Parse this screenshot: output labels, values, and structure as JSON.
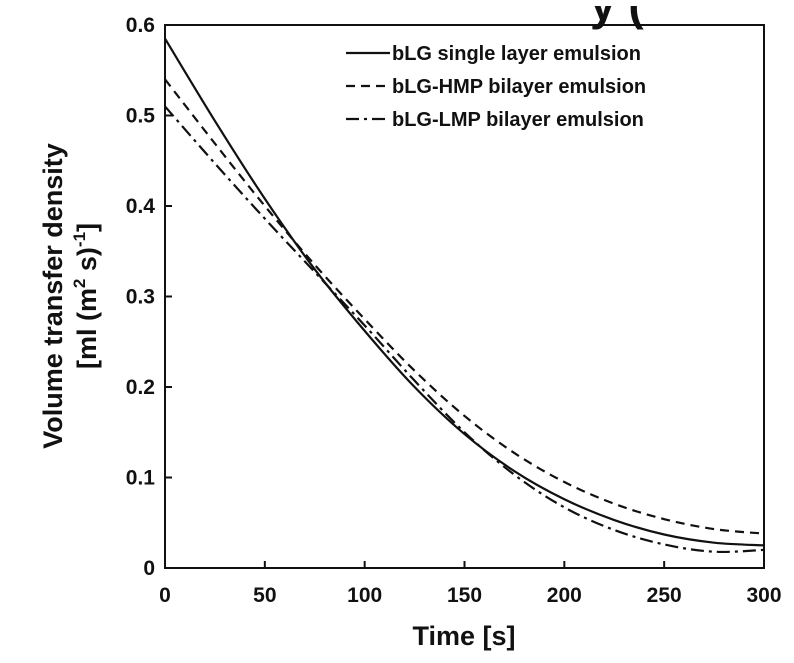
{
  "chart_data": {
    "type": "line",
    "title": "y (",
    "xlabel": "Time [s]",
    "ylabel_line1": "Volume transfer density",
    "ylabel_line2_pre": "[ml (m",
    "ylabel_line2_sup1": "2",
    "ylabel_line2_mid": " s)",
    "ylabel_line2_sup2": "-1",
    "ylabel_line2_post": "]",
    "xlim": [
      0,
      300
    ],
    "ylim": [
      0,
      0.6
    ],
    "xticks": [
      0,
      50,
      100,
      150,
      200,
      250,
      300
    ],
    "xtick_labels": [
      "0",
      "50",
      "100",
      "150",
      "200",
      "250",
      "300"
    ],
    "yticks": [
      0,
      0.1,
      0.2,
      0.3,
      0.4,
      0.5,
      0.6
    ],
    "ytick_labels": [
      "0",
      "0.1",
      "0.2",
      "0.3",
      "0.4",
      "0.5",
      "0.6"
    ],
    "legend_position": "top-right",
    "grid": false,
    "x": [
      0,
      25,
      50,
      75,
      100,
      125,
      150,
      175,
      200,
      225,
      250,
      275,
      300
    ],
    "series": [
      {
        "name": "bLG single layer emulsion",
        "style": "solid",
        "color": "#111111",
        "values": [
          0.585,
          0.494,
          0.408,
          0.33,
          0.262,
          0.2,
          0.148,
          0.107,
          0.076,
          0.053,
          0.037,
          0.028,
          0.025
        ]
      },
      {
        "name": "bLG-HMP bilayer emulsion",
        "style": "dashed",
        "color": "#111111",
        "values": [
          0.54,
          0.469,
          0.4,
          0.335,
          0.275,
          0.218,
          0.168,
          0.127,
          0.095,
          0.071,
          0.054,
          0.043,
          0.038
        ]
      },
      {
        "name": "bLG-LMP bilayer emulsion",
        "style": "dashdot",
        "color": "#111111",
        "values": [
          0.51,
          0.447,
          0.386,
          0.327,
          0.268,
          0.207,
          0.15,
          0.103,
          0.067,
          0.042,
          0.026,
          0.018,
          0.02
        ]
      }
    ]
  }
}
